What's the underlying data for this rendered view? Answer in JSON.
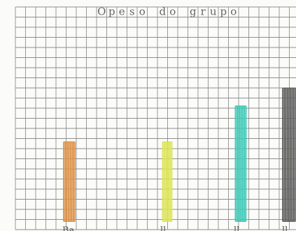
{
  "chart_data": {
    "type": "bar",
    "title": "O p e s o d o g r u p o",
    "title_chars": [
      "O",
      "p",
      "e",
      "s",
      "o",
      "d",
      "o",
      "g",
      "r",
      "u",
      "p",
      "o"
    ],
    "categories": [
      "Ba",
      "ll",
      "ll",
      "ll"
    ],
    "values": [
      9,
      9,
      13,
      15
    ],
    "ylim": [
      0,
      24
    ],
    "grid": true,
    "colors": [
      "#d98a3c",
      "#d8e04a",
      "#2ec4b0",
      "#555555"
    ]
  }
}
